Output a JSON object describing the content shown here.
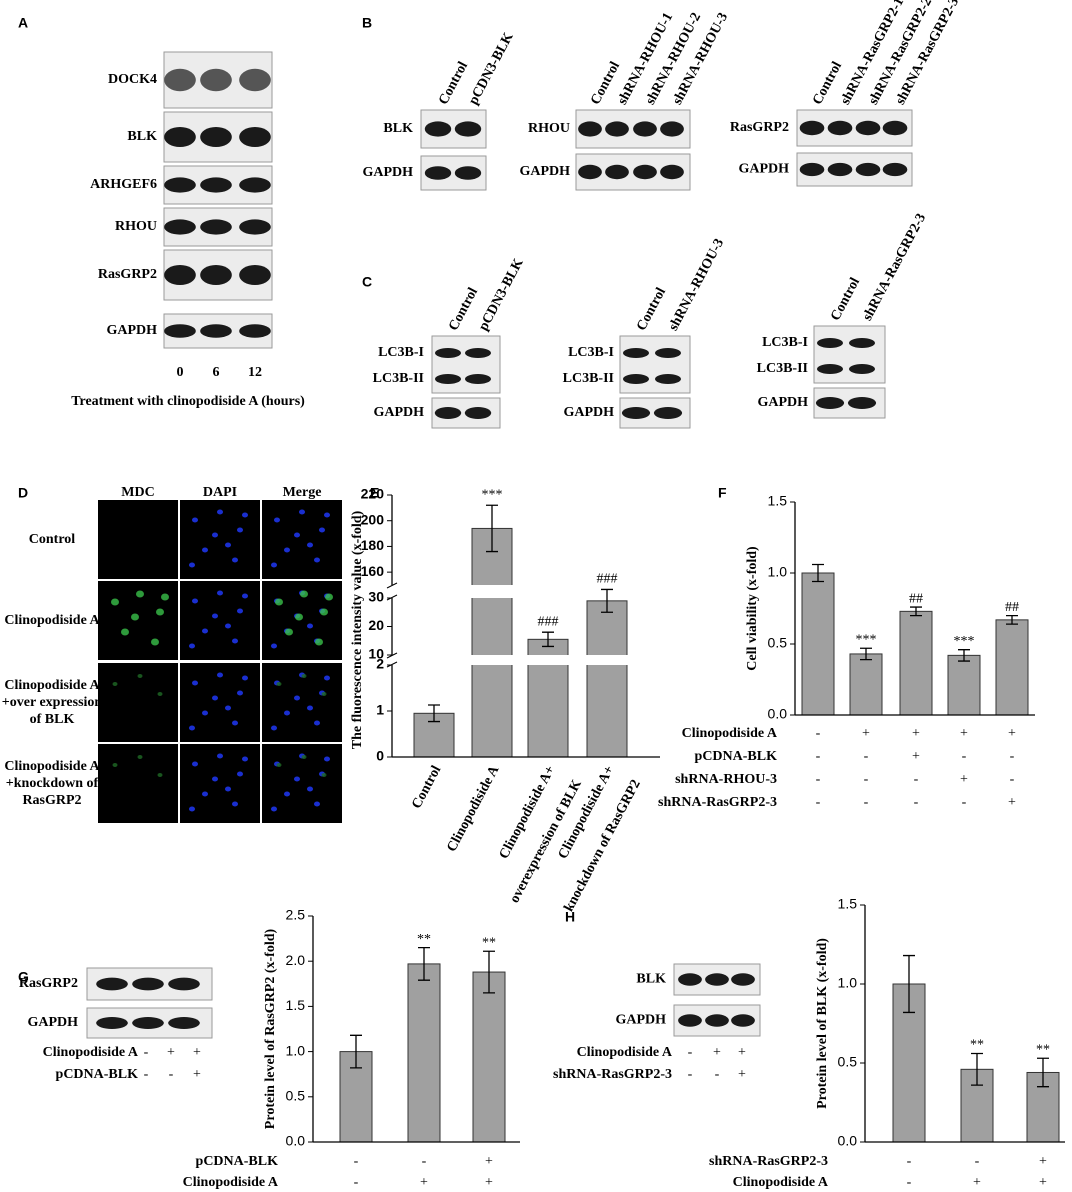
{
  "panel_labels": [
    "A",
    "B",
    "C",
    "D",
    "E",
    "F",
    "G",
    "H"
  ],
  "panel_a": {
    "rows": [
      "DOCK4",
      "BLK",
      "ARHGEF6",
      "RHOU",
      "RasGRP2",
      "GAPDH"
    ],
    "lanes": [
      "0",
      "6",
      "12"
    ],
    "caption": "Treatment with clinopodiside A  (hours)"
  },
  "panel_b": [
    {
      "lanes": [
        "Control",
        "pCDN3-BLK"
      ],
      "rows": [
        "BLK",
        "GAPDH"
      ]
    },
    {
      "lanes": [
        "Control",
        "shRNA-RHOU-1",
        "shRNA-RHOU-2",
        "shRNA-RHOU-3"
      ],
      "rows": [
        "RHOU",
        "GAPDH"
      ]
    },
    {
      "lanes": [
        "Control",
        "shRNA-RasGRP2-1",
        "shRNA-RasGRP2-2",
        "shRNA-RasGRP2-3"
      ],
      "rows": [
        "RasGRP2",
        "GAPDH"
      ]
    }
  ],
  "panel_c": [
    {
      "lanes": [
        "Control",
        "pCDN3-BLK"
      ],
      "rows": [
        "LC3B-I",
        "LC3B-II",
        "GAPDH"
      ]
    },
    {
      "lanes": [
        "Control",
        "shRNA-RHOU-3"
      ],
      "rows": [
        "LC3B-I",
        "LC3B-II",
        "GAPDH"
      ]
    },
    {
      "lanes": [
        "Control",
        "shRNA-RasGRP2-3"
      ],
      "rows": [
        "LC3B-I",
        "LC3B-II",
        "GAPDH"
      ]
    }
  ],
  "panel_d": {
    "columns": [
      "MDC",
      "DAPI",
      "Merge"
    ],
    "rows": [
      [
        "Control"
      ],
      [
        "Clinopodiside A"
      ],
      [
        "Clinopodiside A",
        "+over expression",
        "of BLK"
      ],
      [
        "Clinopodiside A",
        "+knockdown of",
        "RasGRP2"
      ]
    ]
  },
  "panel_g_blot": {
    "rows": [
      "RasGRP2",
      "GAPDH"
    ],
    "conditions": [
      {
        "name": "Clinopodiside A",
        "signs": [
          "-",
          "+",
          "+"
        ]
      },
      {
        "name": "pCDNA-BLK",
        "signs": [
          "-",
          "-",
          "+"
        ]
      }
    ]
  },
  "panel_h_blot": {
    "rows": [
      "BLK",
      "GAPDH"
    ],
    "conditions": [
      {
        "name": "Clinopodiside A",
        "signs": [
          "-",
          "+",
          "+"
        ]
      },
      {
        "name": "shRNA-RasGRP2-3",
        "signs": [
          "-",
          "-",
          "+"
        ]
      }
    ]
  },
  "chart_data": [
    {
      "type": "broken-bar",
      "y_label": "The fluorescence intensity value (x-fold)",
      "categories": [
        [
          "Control"
        ],
        [
          "Clinopodiside A"
        ],
        [
          "Clinopodiside A+",
          "overexpression of BLK"
        ],
        [
          "Clinopodiside A+",
          "knockdown of RasGRP2"
        ]
      ],
      "values": [
        0.95,
        194,
        15.5,
        29
      ],
      "errors": [
        0.18,
        18,
        2.5,
        4
      ],
      "annotations": [
        null,
        "***",
        "###",
        "###"
      ],
      "y_segments": [
        [
          0,
          2
        ],
        [
          10,
          30
        ],
        [
          150,
          220
        ]
      ],
      "yticks": [
        0,
        1,
        2,
        10,
        20,
        30,
        160,
        180,
        200,
        220
      ],
      "color": "#a0a0a0"
    },
    {
      "type": "bar",
      "y_label": "Cell viability (x-fold)",
      "values": [
        1.0,
        0.43,
        0.73,
        0.42,
        0.67
      ],
      "errors": [
        0.06,
        0.04,
        0.03,
        0.04,
        0.03
      ],
      "annotations": [
        null,
        "***",
        "##",
        "***",
        "##"
      ],
      "conditions": [
        {
          "name": "Clinopodiside A",
          "signs": [
            "-",
            "+",
            "+",
            "+",
            "+"
          ]
        },
        {
          "name": "pCDNA-BLK",
          "signs": [
            "-",
            "-",
            "+",
            "-",
            "-"
          ]
        },
        {
          "name": "shRNA-RHOU-3",
          "signs": [
            "-",
            "-",
            "-",
            "+",
            "-"
          ]
        },
        {
          "name": "shRNA-RasGRP2-3",
          "signs": [
            "-",
            "-",
            "-",
            "-",
            "+"
          ]
        }
      ],
      "ylim": [
        0,
        1.5
      ],
      "yticks": [
        {
          "value": 0,
          "label": "0.0"
        },
        {
          "value": 0.5,
          "label": "0.5"
        },
        {
          "value": 1,
          "label": "1.0"
        },
        {
          "value": 1.5,
          "label": "1.5"
        }
      ],
      "color": "#a0a0a0"
    },
    {
      "type": "bar",
      "y_label": "Protein level of RasGRP2 (x-fold)",
      "values": [
        1.0,
        1.97,
        1.88
      ],
      "errors": [
        0.18,
        0.18,
        0.23
      ],
      "annotations": [
        null,
        "**",
        "**"
      ],
      "conditions": [
        {
          "name": "pCDNA-BLK",
          "signs": [
            "-",
            "-",
            "+"
          ]
        },
        {
          "name": "Clinopodiside A",
          "signs": [
            "-",
            "+",
            "+"
          ]
        }
      ],
      "ylim": [
        0,
        2.5
      ],
      "yticks": [
        {
          "value": 0,
          "label": "0.0"
        },
        {
          "value": 0.5,
          "label": "0.5"
        },
        {
          "value": 1,
          "label": "1.0"
        },
        {
          "value": 1.5,
          "label": "1.5"
        },
        {
          "value": 2,
          "label": "2.0"
        },
        {
          "value": 2.5,
          "label": "2.5"
        }
      ],
      "color": "#a0a0a0"
    },
    {
      "type": "bar",
      "y_label": "Protein level of BLK (x-fold)",
      "values": [
        1.0,
        0.46,
        0.44
      ],
      "errors": [
        0.18,
        0.1,
        0.09
      ],
      "annotations": [
        null,
        "**",
        "**"
      ],
      "conditions": [
        {
          "name": "shRNA-RasGRP2-3",
          "signs": [
            "-",
            "-",
            "+"
          ]
        },
        {
          "name": "Clinopodiside A",
          "signs": [
            "-",
            "+",
            "+"
          ]
        }
      ],
      "ylim": [
        0,
        1.5
      ],
      "yticks": [
        {
          "value": 0,
          "label": "0.0"
        },
        {
          "value": 0.5,
          "label": "0.5"
        },
        {
          "value": 1,
          "label": "1.0"
        },
        {
          "value": 1.5,
          "label": "1.5"
        }
      ],
      "color": "#a0a0a0"
    }
  ]
}
